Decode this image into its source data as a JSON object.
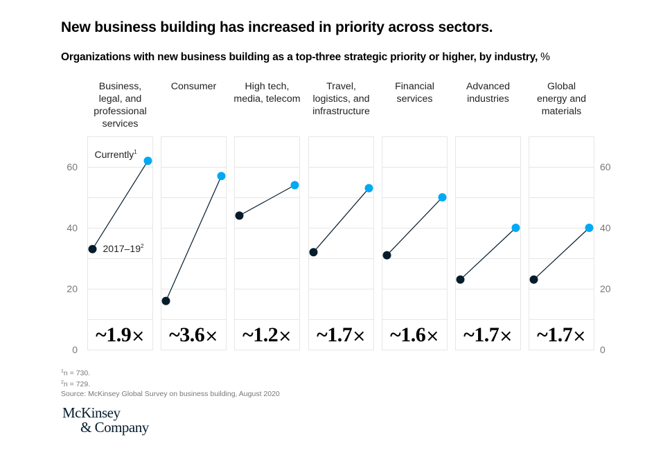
{
  "chart_data": {
    "type": "line",
    "title": "New business building has increased in priority across sectors.",
    "subtitle": "Organizations with new business building as a top-three strategic priority or higher, by industry,",
    "unit": "%",
    "ylabel": "%",
    "ylim": [
      0,
      70
    ],
    "yticks": [
      0,
      20,
      40,
      60
    ],
    "grid": true,
    "x": [
      "2017–19",
      "Currently"
    ],
    "series_labels": {
      "before": "2017–19",
      "before_footnote": "2",
      "after": "Currently",
      "after_footnote": "1"
    },
    "colors": {
      "before": "#051c2c",
      "after": "#00a9f4",
      "line": "#051c2c",
      "grid": "#e6e6e6"
    },
    "panels": [
      {
        "name": "Business, legal, and professional services",
        "label_lines": [
          "Business,",
          "legal, and",
          "professional",
          "services"
        ],
        "before": 33,
        "after": 62,
        "multiplier": "~1.9",
        "multiplier_symbol": "×"
      },
      {
        "name": "Consumer",
        "label_lines": [
          "Consumer"
        ],
        "before": 16,
        "after": 57,
        "multiplier": "~3.6",
        "multiplier_symbol": "×"
      },
      {
        "name": "High tech, media, telecom",
        "label_lines": [
          "High tech,",
          "media, telecom"
        ],
        "before": 44,
        "after": 54,
        "multiplier": "~1.2",
        "multiplier_symbol": "×"
      },
      {
        "name": "Travel, logistics, and infrastructure",
        "label_lines": [
          "Travel,",
          "logistics, and",
          "infrastructure"
        ],
        "before": 32,
        "after": 53,
        "multiplier": "~1.7",
        "multiplier_symbol": "×"
      },
      {
        "name": "Financial services",
        "label_lines": [
          "Financial",
          "services"
        ],
        "before": 31,
        "after": 50,
        "multiplier": "~1.6",
        "multiplier_symbol": "×"
      },
      {
        "name": "Advanced industries",
        "label_lines": [
          "Advanced",
          "industries"
        ],
        "before": 23,
        "after": 40,
        "multiplier": "~1.7",
        "multiplier_symbol": "×"
      },
      {
        "name": "Global energy and materials",
        "label_lines": [
          "Global",
          "energy and",
          "materials"
        ],
        "before": 23,
        "after": 40,
        "multiplier": "~1.7",
        "multiplier_symbol": "×"
      }
    ]
  },
  "footnotes": [
    {
      "marker": "1",
      "text": "n = 730."
    },
    {
      "marker": "2",
      "text": "n = 729."
    }
  ],
  "source": "Source: McKinsey Global Survey on business building, August 2020",
  "logo": {
    "line1": "McKinsey",
    "line2": "& Company"
  }
}
